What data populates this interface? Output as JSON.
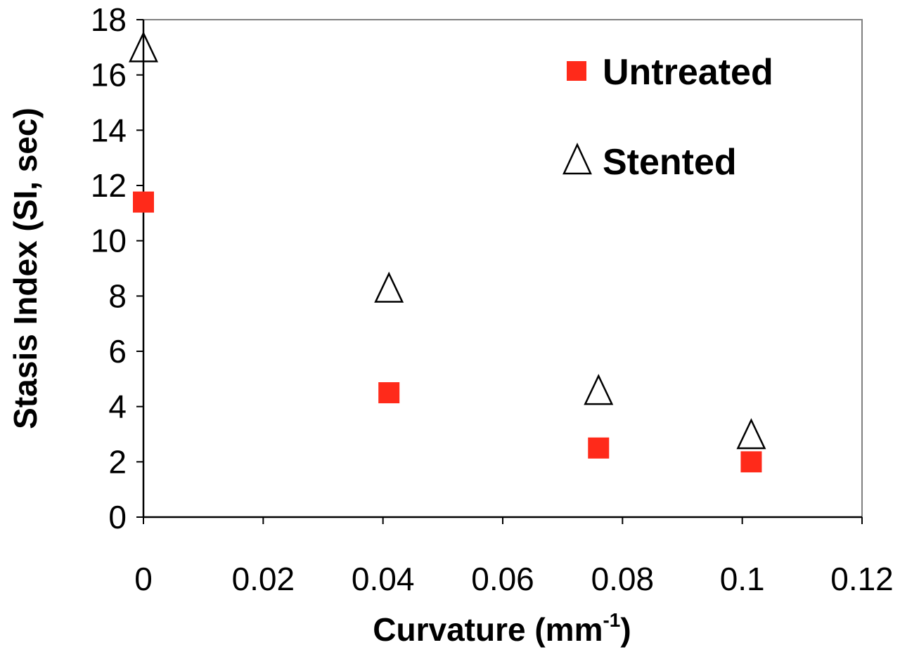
{
  "chart_data": {
    "type": "scatter",
    "title": "",
    "xlabel": "Curvature (mm",
    "xlabel_superscript": "-1",
    "xlabel_suffix": ")",
    "ylabel": "Stasis Index (SI, sec)",
    "xlim": [
      0,
      0.12
    ],
    "ylim": [
      0,
      18
    ],
    "x_ticks": [
      0,
      0.02,
      0.04,
      0.06,
      0.08,
      0.1,
      0.12
    ],
    "x_tick_labels": [
      "0",
      "0.02",
      "0.04",
      "0.06",
      "0.08",
      "0.1",
      "0.12"
    ],
    "y_ticks": [
      0,
      2,
      4,
      6,
      8,
      10,
      12,
      14,
      16,
      18
    ],
    "y_tick_labels": [
      "0",
      "2",
      "4",
      "6",
      "8",
      "10",
      "12",
      "14",
      "16",
      "18"
    ],
    "grid": false,
    "legend_position": "top-right",
    "series": [
      {
        "name": "Untreated",
        "marker": "square",
        "color": "#ff2a1a",
        "x": [
          0,
          0.041,
          0.076,
          0.1015
        ],
        "y": [
          11.4,
          4.5,
          2.5,
          2.0
        ]
      },
      {
        "name": "Stented",
        "marker": "triangle-open",
        "color": "#000000",
        "x": [
          0,
          0.041,
          0.076,
          0.1015
        ],
        "y": [
          17.0,
          8.3,
          4.6,
          3.0
        ]
      }
    ]
  }
}
